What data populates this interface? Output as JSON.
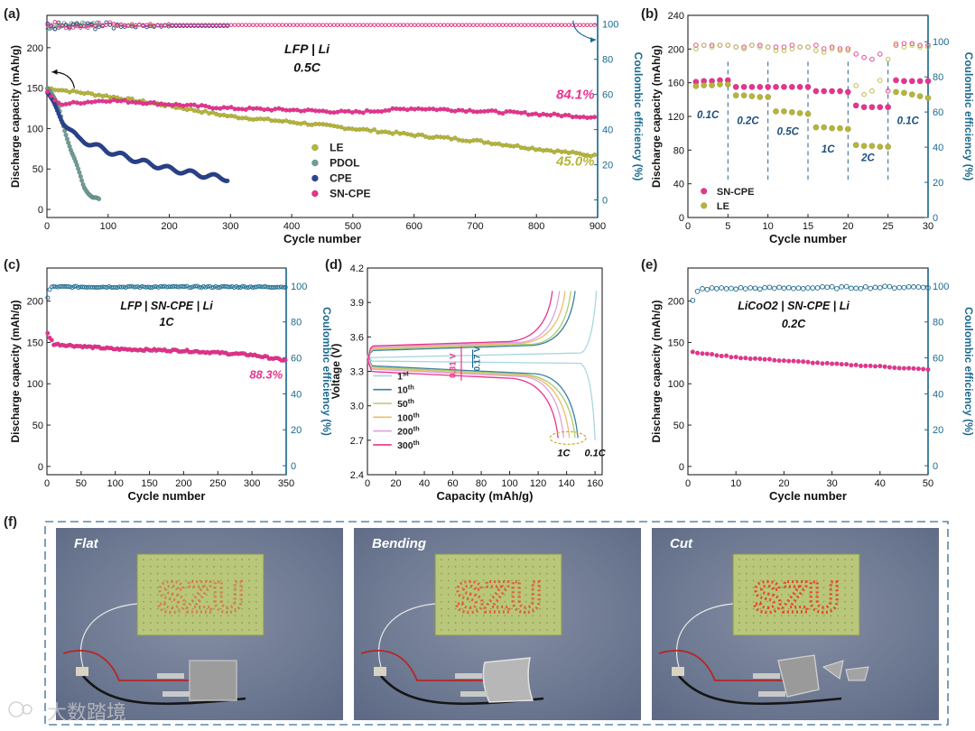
{
  "panel_letters": [
    "(a)",
    "(b)",
    "(c)",
    "(d)",
    "(e)",
    "(f)"
  ],
  "chart_data": [
    {
      "id": "a",
      "type": "scatter",
      "xlabel": "Cycle number",
      "ylabel": "Discharge capacity (mAh/g)",
      "y2label": "Coulombic efficiency (%)",
      "xlim": [
        0,
        900
      ],
      "ylim": [
        -10,
        240
      ],
      "y2lim": [
        -10,
        105
      ],
      "xticks": [
        0,
        100,
        200,
        300,
        400,
        500,
        600,
        700,
        800,
        900
      ],
      "yticks": [
        0,
        50,
        100,
        150,
        200
      ],
      "y2ticks": [
        0,
        20,
        40,
        60,
        80,
        100
      ],
      "annotations": [
        "LFP | Li",
        "0.5C",
        "84.1%",
        "45.0%"
      ],
      "legend": [
        "LE",
        "PDOL",
        "CPE",
        "SN-CPE"
      ],
      "colors": {
        "LE": "#b5b53a",
        "PDOL": "#6e9d96",
        "CPE": "#2b4592",
        "SN-CPE": "#e8338f",
        "axis2": "#1b6a8f"
      },
      "series": [
        {
          "name": "LE",
          "x_end": 900,
          "capacity": [
            [
              0,
              150
            ],
            [
              100,
              140
            ],
            [
              200,
              128
            ],
            [
              300,
              115
            ],
            [
              400,
              108
            ],
            [
              500,
              100
            ],
            [
              600,
              92
            ],
            [
              700,
              85
            ],
            [
              800,
              75
            ],
            [
              900,
              66
            ]
          ],
          "ce_end": 99.5
        },
        {
          "name": "PDOL",
          "x_end": 85,
          "capacity": [
            [
              0,
              150
            ],
            [
              20,
              125
            ],
            [
              40,
              70
            ],
            [
              60,
              30
            ],
            [
              75,
              15
            ],
            [
              85,
              10
            ]
          ],
          "ce_end": 99
        },
        {
          "name": "CPE",
          "x_end": 295,
          "capacity": [
            [
              0,
              145
            ],
            [
              25,
              110
            ],
            [
              50,
              88
            ],
            [
              100,
              72
            ],
            [
              150,
              60
            ],
            [
              200,
              50
            ],
            [
              250,
              43
            ],
            [
              295,
              38
            ]
          ],
          "ce_end": 99
        },
        {
          "name": "SN-CPE",
          "x_end": 900,
          "capacity": [
            [
              0,
              145
            ],
            [
              20,
              130
            ],
            [
              100,
              135
            ],
            [
              200,
              130
            ],
            [
              300,
              125
            ],
            [
              400,
              123
            ],
            [
              500,
              120
            ],
            [
              600,
              125
            ],
            [
              700,
              122
            ],
            [
              800,
              118
            ],
            [
              900,
              114
            ]
          ],
          "ce_end": 99.5
        }
      ]
    },
    {
      "id": "b",
      "type": "scatter",
      "xlabel": "Cycle number",
      "ylabel": "Discharge capacity (mAh/g)",
      "y2label": "Coulombic efficiency (%)",
      "xlim": [
        0,
        30
      ],
      "ylim": [
        0,
        240
      ],
      "y2lim": [
        0,
        115
      ],
      "xticks": [
        0,
        5,
        10,
        15,
        20,
        25,
        30
      ],
      "yticks": [
        0,
        40,
        80,
        120,
        160,
        200,
        240
      ],
      "y2ticks": [
        0,
        20,
        40,
        60,
        80,
        100
      ],
      "rate_labels": [
        "0.1C",
        "0.2C",
        "0.5C",
        "1C",
        "2C",
        "0.1C"
      ],
      "legend": [
        "SN-CPE",
        "LE"
      ],
      "series": [
        {
          "name": "SN-CPE",
          "capacity": [
            161,
            162,
            162,
            163,
            163,
            155,
            155,
            155,
            155,
            155,
            155,
            155,
            155,
            155,
            155,
            150,
            150,
            150,
            150,
            149,
            133,
            131,
            131,
            131,
            131,
            163,
            162,
            162,
            162,
            162
          ],
          "ce": [
            98,
            98,
            98,
            98,
            98,
            97,
            97,
            98,
            98,
            97,
            97,
            97,
            98,
            97,
            97,
            98,
            96,
            97,
            96,
            96,
            93,
            91,
            90,
            93,
            72,
            98,
            99,
            99,
            98,
            98
          ]
        },
        {
          "name": "LE",
          "capacity": [
            156,
            157,
            157,
            158,
            158,
            145,
            145,
            144,
            143,
            143,
            126,
            126,
            125,
            124,
            123,
            107,
            107,
            106,
            106,
            105,
            86,
            85,
            85,
            84,
            84,
            149,
            148,
            146,
            144,
            142
          ],
          "ce": [
            96,
            98,
            97,
            98,
            98,
            97,
            96,
            98,
            97,
            97,
            95,
            95,
            96,
            97,
            97,
            95,
            94,
            96,
            95,
            95,
            75,
            70,
            72,
            78,
            90,
            99,
            97,
            98,
            97,
            97
          ]
        }
      ]
    },
    {
      "id": "c",
      "type": "scatter",
      "xlabel": "Cycle number",
      "ylabel": "Discharge capacity (mAh/g)",
      "y2label": "Coulombic efficiency (%)",
      "xlim": [
        0,
        350
      ],
      "ylim": [
        -10,
        240
      ],
      "y2lim": [
        -5,
        110
      ],
      "xticks": [
        0,
        50,
        100,
        150,
        200,
        250,
        300,
        350
      ],
      "yticks": [
        0,
        50,
        100,
        150,
        200
      ],
      "y2ticks": [
        0,
        20,
        40,
        60,
        80,
        100
      ],
      "annotations": [
        "LFP | SN-CPE | Li",
        "1C",
        "88.3%"
      ],
      "series": [
        {
          "name": "SN-CPE capacity",
          "capacity": [
            [
              0,
              162
            ],
            [
              10,
              148
            ],
            [
              100,
              142
            ],
            [
              200,
              140
            ],
            [
              300,
              135
            ],
            [
              350,
              128
            ]
          ]
        },
        {
          "name": "SN-CPE CE",
          "ce": [
            [
              0,
              92
            ],
            [
              5,
              99.5
            ],
            [
              350,
              99.5
            ]
          ]
        }
      ]
    },
    {
      "id": "d",
      "type": "line",
      "xlabel": "Capacity (mAh/g)",
      "ylabel": "Voltage (V)",
      "xlim": [
        0,
        165
      ],
      "ylim": [
        2.4,
        4.2
      ],
      "xticks": [
        0,
        20,
        40,
        60,
        80,
        100,
        120,
        140,
        160
      ],
      "yticks": [
        2.4,
        2.7,
        3.0,
        3.3,
        3.6,
        3.9,
        4.2
      ],
      "annotations": [
        "0.31 V",
        "0.17 V",
        "1C",
        "0.1C"
      ],
      "legend": [
        {
          "n": "1",
          "sup": "st",
          "color": "#a8d4e0"
        },
        {
          "n": "10",
          "sup": "th",
          "color": "#3d7ea6"
        },
        {
          "n": "50",
          "sup": "th",
          "color": "#a8cf6c"
        },
        {
          "n": "100",
          "sup": "th",
          "color": "#f0ba6e"
        },
        {
          "n": "200",
          "sup": "th",
          "color": "#d9a3dc"
        },
        {
          "n": "300",
          "sup": "th",
          "color": "#e8338f"
        }
      ],
      "series": [
        {
          "name": "1st",
          "charge_end": 161,
          "charge_v": 3.44,
          "discharge_end": 160,
          "discharge_v": 3.38
        },
        {
          "name": "10th",
          "charge_end": 146,
          "charge_v": 3.48,
          "discharge_end": 148,
          "discharge_v": 3.35
        },
        {
          "name": "50th",
          "charge_end": 143,
          "charge_v": 3.49,
          "discharge_end": 146,
          "discharge_v": 3.34
        },
        {
          "name": "100th",
          "charge_end": 139,
          "charge_v": 3.5,
          "discharge_end": 142,
          "discharge_v": 3.33
        },
        {
          "name": "200th",
          "charge_end": 135,
          "charge_v": 3.51,
          "discharge_end": 138,
          "discharge_v": 3.32
        },
        {
          "name": "300th",
          "charge_end": 130,
          "charge_v": 3.52,
          "discharge_end": 134,
          "discharge_v": 3.3
        }
      ]
    },
    {
      "id": "e",
      "type": "scatter",
      "xlabel": "Cycle number",
      "ylabel": "Discharge capacity (mAh/g)",
      "y2label": "Coulombic efficiency (%)",
      "xlim": [
        0,
        50
      ],
      "ylim": [
        -10,
        240
      ],
      "y2lim": [
        -5,
        110
      ],
      "xticks": [
        0,
        10,
        20,
        30,
        40,
        50
      ],
      "yticks": [
        0,
        50,
        100,
        150,
        200
      ],
      "y2ticks": [
        0,
        20,
        40,
        60,
        80,
        100
      ],
      "annotations": [
        "LiCoO2 | SN-CPE | Li",
        "0.2C"
      ],
      "series": [
        {
          "name": "SN-CPE capacity",
          "capacity": [
            [
              1,
              138
            ],
            [
              10,
              132
            ],
            [
              20,
              128
            ],
            [
              30,
              124
            ],
            [
              40,
              121
            ],
            [
              50,
              117
            ]
          ]
        },
        {
          "name": "SN-CPE CE",
          "ce": [
            [
              1,
              92
            ],
            [
              2,
              97
            ],
            [
              3,
              98.5
            ],
            [
              50,
              99.5
            ]
          ]
        }
      ]
    }
  ],
  "photos": {
    "labels": [
      "Flat",
      "Bending",
      "Cut"
    ],
    "board_text": "SZU"
  },
  "watermark": "大数踏境"
}
